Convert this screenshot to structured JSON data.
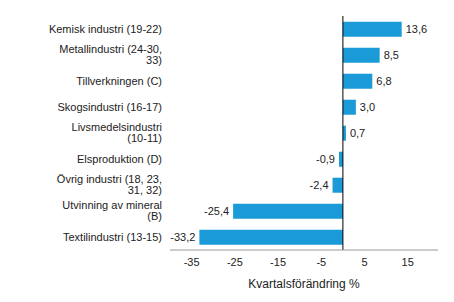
{
  "chart_data": {
    "type": "bar",
    "orientation": "horizontal",
    "categories": [
      "Kemisk industri (19-22)",
      "Metallindustri (24-30, 33)",
      "Tillverkningen (C)",
      "Skogsindustri (16-17)",
      "Livsmedelsindustri (10-11)",
      "Elsproduktion (D)",
      "Övrig industri (18, 23, 31, 32)",
      "Utvinning av mineral (B)",
      "Textilindustri (13-15)"
    ],
    "values": [
      13.6,
      8.5,
      6.8,
      3.0,
      0.7,
      -0.9,
      -2.4,
      -25.4,
      -33.2
    ],
    "value_labels": [
      "13,6",
      "8,5",
      "6,8",
      "3,0",
      "0,7",
      "-0,9",
      "-2,4",
      "-25,4",
      "-33,2"
    ],
    "data_labels": true,
    "color": "#1a9ad6",
    "x_label": "Kvartalsförändring %",
    "xlim": [
      -40,
      22
    ],
    "xticks": [
      -35,
      -25,
      -15,
      -5,
      5,
      15
    ],
    "grid": false
  }
}
